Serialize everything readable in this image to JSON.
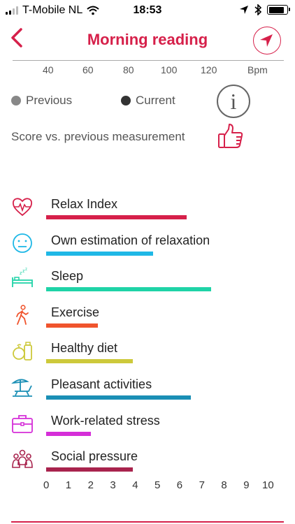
{
  "status_bar": {
    "carrier": "T-Mobile NL",
    "time": "18:53",
    "battery_level": 0.85
  },
  "header": {
    "title": "Morning reading",
    "title_color": "#d6204a"
  },
  "bpm_axis": {
    "ticks": [
      "40",
      "60",
      "80",
      "100",
      "120"
    ],
    "unit": "Bpm"
  },
  "legend": {
    "previous": "Previous",
    "current": "Current",
    "previous_color": "#888888",
    "current_color": "#333333"
  },
  "score_label": "Score vs. previous measurement",
  "score_icon": "thumbs-up-icon",
  "chart_data": {
    "type": "bar",
    "categories": [
      "Relax Index",
      "Own estimation of relaxation",
      "Sleep",
      "Exercise",
      "Healthy diet",
      "Pleasant activities",
      "Work-related stress",
      "Social pressure"
    ],
    "series": [
      {
        "values": [
          6.5,
          5.0,
          7.6,
          2.5,
          4.1,
          6.7,
          2.2,
          4.1
        ]
      }
    ],
    "colors": [
      "#d6204a",
      "#1fb8e6",
      "#1fd3a7",
      "#f0542d",
      "#cdc93b",
      "#1a8fb5",
      "#d52ed8",
      "#a8234d"
    ],
    "icons": [
      "heart-pulse-icon",
      "neutral-face-icon",
      "bed-sleep-icon",
      "walking-person-icon",
      "fruit-jar-icon",
      "beach-chair-icon",
      "briefcase-icon",
      "group-people-icon"
    ],
    "xlim": [
      0,
      10
    ],
    "xticks": [
      "0",
      "1",
      "2",
      "3",
      "4",
      "5",
      "6",
      "7",
      "8",
      "9",
      "10"
    ]
  }
}
